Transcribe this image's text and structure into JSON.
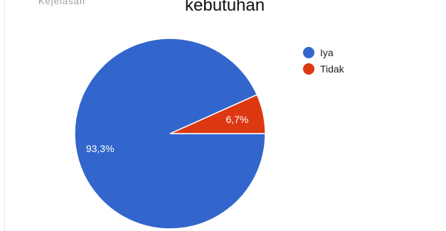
{
  "header": {
    "cut_label": "Kejelasan",
    "title": "kebutuhan"
  },
  "chart_data": {
    "type": "pie",
    "title": "kebutuhan",
    "slices": [
      {
        "label": "Iya",
        "value": 93.3,
        "display": "93,3%",
        "color": "#3366cc"
      },
      {
        "label": "Tidak",
        "value": 6.7,
        "display": "6,7%",
        "color": "#dc3912"
      }
    ],
    "legend_position": "top-right"
  }
}
